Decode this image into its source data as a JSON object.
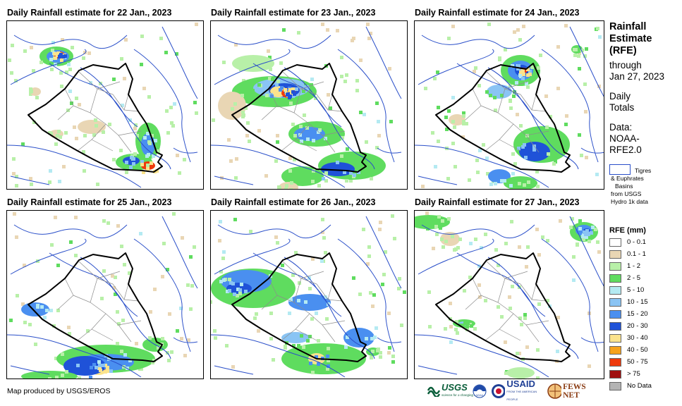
{
  "panels": [
    {
      "title": "Daily Rainfall estimate for 22 Jan., 2023"
    },
    {
      "title": "Daily Rainfall estimate for 23 Jan., 2023"
    },
    {
      "title": "Daily Rainfall estimate for 24 Jan., 2023"
    },
    {
      "title": "Daily Rainfall estimate for 25 Jan., 2023"
    },
    {
      "title": "Daily Rainfall estimate for 26 Jan., 2023"
    },
    {
      "title": "Daily Rainfall estimate for 27 Jan., 2023"
    }
  ],
  "sidebar": {
    "title_lines": [
      "Rainfall",
      "Estimate",
      "(RFE)"
    ],
    "through_label": "through",
    "through_date": "Jan 27, 2023",
    "totals_lines": [
      "Daily",
      "Totals"
    ],
    "data_lines": [
      "Data:",
      "NOAA-",
      "RFE2.0"
    ],
    "basin_lines": [
      "Tigres",
      "& Euphrates",
      "Basins",
      "from USGS",
      "Hydro 1k data"
    ]
  },
  "legend": {
    "title": "RFE (mm)",
    "items": [
      {
        "label": "0 - 0.1",
        "color": "#ffffff"
      },
      {
        "label": "0.1 - 1",
        "color": "#e9d6b4"
      },
      {
        "label": "1 - 2",
        "color": "#b8f0a8"
      },
      {
        "label": "2 - 5",
        "color": "#5fdc5f"
      },
      {
        "label": "5 - 10",
        "color": "#b4eaf2"
      },
      {
        "label": "10 - 15",
        "color": "#8ac4f4"
      },
      {
        "label": "15 - 20",
        "color": "#4a8ff0"
      },
      {
        "label": "20 - 30",
        "color": "#1f52d8"
      },
      {
        "label": "30 - 40",
        "color": "#fbe38c"
      },
      {
        "label": "40 - 50",
        "color": "#f6a21c"
      },
      {
        "label": "50 - 75",
        "color": "#ee3a0c"
      },
      {
        "label": "> 75",
        "color": "#a01010"
      },
      {
        "label": "No Data",
        "color": "#b4b4b4"
      }
    ]
  },
  "footer": {
    "credit": "Map produced by USGS/EROS"
  },
  "logos": {
    "usgs": "USGS",
    "usgs_tagline": "science for a changing world",
    "noaa": "NOAA",
    "usaid": "USAID",
    "usaid_tagline": "FROM THE AMERICAN PEOPLE",
    "fews": "FEWS NET"
  },
  "colors": {
    "border": "#000000",
    "rivers": "#2a4fc9",
    "admin": "#8c8c8c"
  }
}
